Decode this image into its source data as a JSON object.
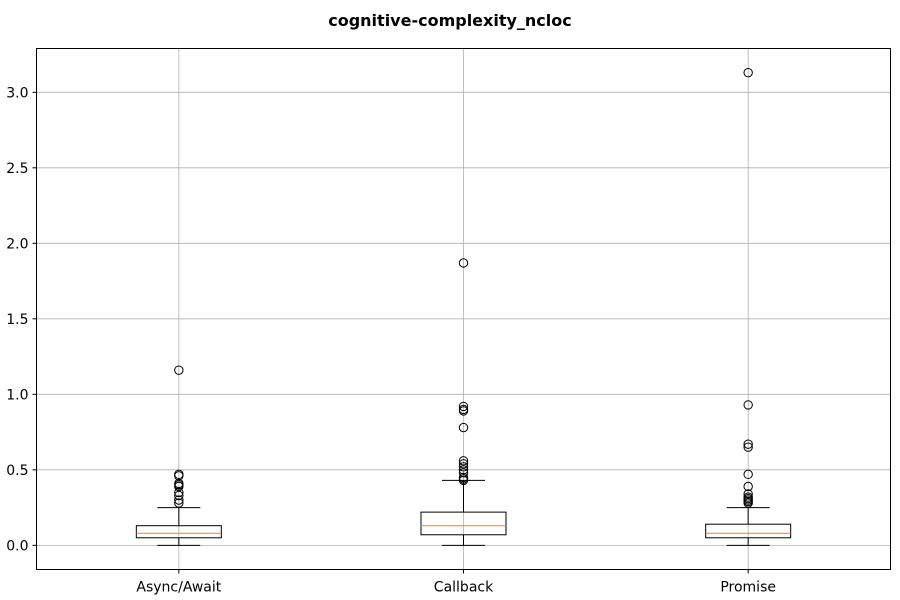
{
  "chart_data": {
    "type": "box",
    "title": "cognitive-complexity_ncloc",
    "xlabel": "",
    "ylabel": "",
    "ylim": [
      -0.16,
      3.29
    ],
    "yticks": [
      0.0,
      0.5,
      1.0,
      1.5,
      2.0,
      2.5,
      3.0
    ],
    "ytick_labels": [
      "0.0",
      "0.5",
      "1.0",
      "1.5",
      "2.0",
      "2.5",
      "3.0"
    ],
    "grid": true,
    "categories": [
      "Async/Await",
      "Callback",
      "Promise"
    ],
    "series": [
      {
        "category": "Async/Await",
        "whisker_low": 0.0,
        "q1": 0.05,
        "median": 0.08,
        "q3": 0.13,
        "whisker_high": 0.25,
        "outliers": [
          1.16,
          0.47,
          0.46,
          0.41,
          0.4,
          0.39,
          0.35,
          0.33,
          0.3,
          0.28
        ]
      },
      {
        "category": "Callback",
        "whisker_low": 0.0,
        "q1": 0.07,
        "median": 0.13,
        "q3": 0.22,
        "whisker_high": 0.43,
        "outliers": [
          1.87,
          0.92,
          0.9,
          0.89,
          0.78,
          0.56,
          0.54,
          0.52,
          0.5,
          0.48,
          0.45,
          0.44,
          0.43
        ]
      },
      {
        "category": "Promise",
        "whisker_low": 0.0,
        "q1": 0.05,
        "median": 0.08,
        "q3": 0.14,
        "whisker_high": 0.25,
        "outliers": [
          3.13,
          0.93,
          0.67,
          0.65,
          0.47,
          0.39,
          0.34,
          0.32,
          0.31,
          0.3,
          0.29,
          0.28
        ]
      }
    ],
    "colors": {
      "box": "#000000",
      "median": "#ff7f0e",
      "grid": "#b0b0b0"
    }
  }
}
